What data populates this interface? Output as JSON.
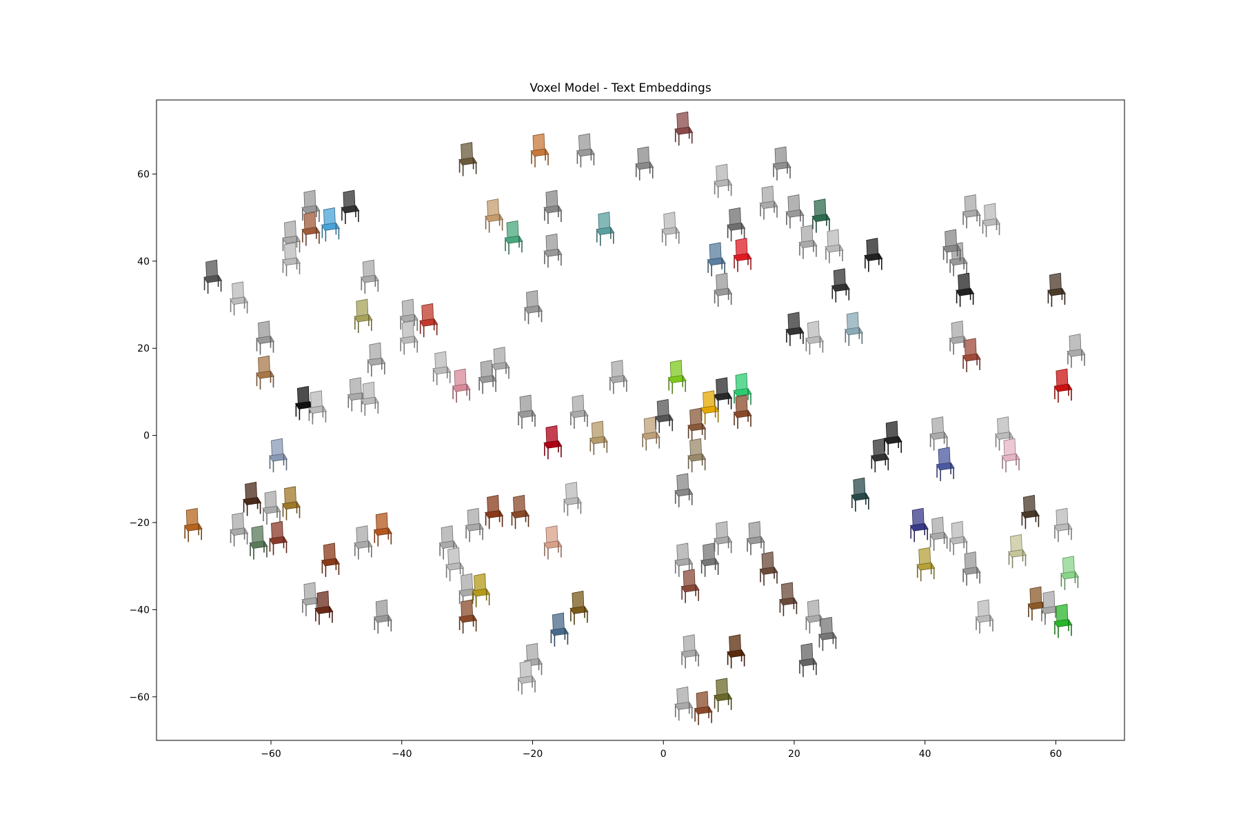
{
  "chart_data": {
    "type": "scatter",
    "title": "Voxel Model - Text Embeddings",
    "xlabel": "",
    "ylabel": "",
    "xlim": [
      -77.5,
      70.5
    ],
    "ylim": [
      -70,
      77
    ],
    "xticks": [
      -60,
      -40,
      -20,
      0,
      20,
      40,
      60
    ],
    "yticks": [
      -60,
      -40,
      -20,
      0,
      20,
      40,
      60
    ],
    "xtick_labels": [
      "−60",
      "−40",
      "−20",
      "0",
      "20",
      "40",
      "60"
    ],
    "ytick_labels": [
      "−60",
      "−40",
      "−20",
      "0",
      "20",
      "40",
      "60"
    ],
    "grid": false,
    "legend": "none",
    "marker": "chair-thumbnail",
    "points": [
      {
        "x": -30,
        "y": 63,
        "color": "#6b5a3a"
      },
      {
        "x": -19,
        "y": 65,
        "color": "#c8783a"
      },
      {
        "x": -12,
        "y": 65,
        "color": "#9a9a9a"
      },
      {
        "x": -3,
        "y": 62,
        "color": "#8a8a8a"
      },
      {
        "x": 3,
        "y": 70,
        "color": "#8a4a4a"
      },
      {
        "x": 9,
        "y": 58,
        "color": "#b5b5b5"
      },
      {
        "x": 18,
        "y": 62,
        "color": "#909090"
      },
      {
        "x": -54,
        "y": 52,
        "color": "#9a9a9a"
      },
      {
        "x": -48,
        "y": 52,
        "color": "#333333"
      },
      {
        "x": -51,
        "y": 48,
        "color": "#4aa3d8"
      },
      {
        "x": -54,
        "y": 47,
        "color": "#a05a3a"
      },
      {
        "x": -57,
        "y": 45,
        "color": "#aaaaaa"
      },
      {
        "x": -57,
        "y": 40,
        "color": "#bbbbbb"
      },
      {
        "x": -26,
        "y": 50,
        "color": "#c69c6d"
      },
      {
        "x": -23,
        "y": 45,
        "color": "#4aa87f"
      },
      {
        "x": -17,
        "y": 52,
        "color": "#888888"
      },
      {
        "x": -17,
        "y": 42,
        "color": "#999999"
      },
      {
        "x": -9,
        "y": 47,
        "color": "#5aa0a0"
      },
      {
        "x": 1,
        "y": 47,
        "color": "#bbbbbb"
      },
      {
        "x": 11,
        "y": 48,
        "color": "#707070"
      },
      {
        "x": 16,
        "y": 53,
        "color": "#aaaaaa"
      },
      {
        "x": 20,
        "y": 51,
        "color": "#999999"
      },
      {
        "x": 24,
        "y": 50,
        "color": "#2e6b4f"
      },
      {
        "x": 8,
        "y": 40,
        "color": "#5a7fa0"
      },
      {
        "x": 12,
        "y": 41,
        "color": "#e01b24"
      },
      {
        "x": 22,
        "y": 44,
        "color": "#aaaaaa"
      },
      {
        "x": 26,
        "y": 43,
        "color": "#bbbbbb"
      },
      {
        "x": 32,
        "y": 41,
        "color": "#222222"
      },
      {
        "x": 47,
        "y": 51,
        "color": "#aaaaaa"
      },
      {
        "x": 50,
        "y": 49,
        "color": "#bbbbbb"
      },
      {
        "x": -69,
        "y": 36,
        "color": "#555555"
      },
      {
        "x": -65,
        "y": 31,
        "color": "#bbbbbb"
      },
      {
        "x": -45,
        "y": 36,
        "color": "#aaaaaa"
      },
      {
        "x": -46,
        "y": 27,
        "color": "#a6a35a"
      },
      {
        "x": -39,
        "y": 27,
        "color": "#aaaaaa"
      },
      {
        "x": -36,
        "y": 26,
        "color": "#c0392b"
      },
      {
        "x": -39,
        "y": 22,
        "color": "#bbbbbb"
      },
      {
        "x": -20,
        "y": 29,
        "color": "#999999"
      },
      {
        "x": 9,
        "y": 33,
        "color": "#999999"
      },
      {
        "x": 27,
        "y": 34,
        "color": "#333333"
      },
      {
        "x": 20,
        "y": 24,
        "color": "#333333"
      },
      {
        "x": 23,
        "y": 22,
        "color": "#bbbbbb"
      },
      {
        "x": 29,
        "y": 24,
        "color": "#8aaab5"
      },
      {
        "x": 45,
        "y": 40,
        "color": "#999999"
      },
      {
        "x": 46,
        "y": 33,
        "color": "#222222"
      },
      {
        "x": 44,
        "y": 43,
        "color": "#888888"
      },
      {
        "x": 60,
        "y": 33,
        "color": "#4a3a2a"
      },
      {
        "x": -61,
        "y": 22,
        "color": "#999999"
      },
      {
        "x": -61,
        "y": 14,
        "color": "#a8784a"
      },
      {
        "x": -44,
        "y": 17,
        "color": "#aaaaaa"
      },
      {
        "x": -34,
        "y": 15,
        "color": "#bbbbbb"
      },
      {
        "x": -31,
        "y": 11,
        "color": "#d98a9a"
      },
      {
        "x": -27,
        "y": 13,
        "color": "#999999"
      },
      {
        "x": -25,
        "y": 16,
        "color": "#aaaaaa"
      },
      {
        "x": -55,
        "y": 7,
        "color": "#111111"
      },
      {
        "x": -53,
        "y": 6,
        "color": "#bbbbbb"
      },
      {
        "x": -47,
        "y": 9,
        "color": "#aaaaaa"
      },
      {
        "x": -45,
        "y": 8,
        "color": "#bbbbbb"
      },
      {
        "x": -7,
        "y": 13,
        "color": "#aaaaaa"
      },
      {
        "x": 2,
        "y": 13,
        "color": "#7ec81e"
      },
      {
        "x": 9,
        "y": 9,
        "color": "#2a2a2a"
      },
      {
        "x": 12,
        "y": 10,
        "color": "#2ecc71"
      },
      {
        "x": 7,
        "y": 6,
        "color": "#e5a800"
      },
      {
        "x": 12,
        "y": 5,
        "color": "#8a4a2a"
      },
      {
        "x": 45,
        "y": 22,
        "color": "#aaaaaa"
      },
      {
        "x": 47,
        "y": 18,
        "color": "#a04a3a"
      },
      {
        "x": 63,
        "y": 19,
        "color": "#aaaaaa"
      },
      {
        "x": 61,
        "y": 11,
        "color": "#cc1111"
      },
      {
        "x": -21,
        "y": 5,
        "color": "#999999"
      },
      {
        "x": -13,
        "y": 5,
        "color": "#aaaaaa"
      },
      {
        "x": -17,
        "y": -2,
        "color": "#b00015"
      },
      {
        "x": -10,
        "y": -1,
        "color": "#b59a6a"
      },
      {
        "x": 0,
        "y": 4,
        "color": "#555555"
      },
      {
        "x": -2,
        "y": 0,
        "color": "#c0a07a"
      },
      {
        "x": 5,
        "y": 2,
        "color": "#8a5a3a"
      },
      {
        "x": 5,
        "y": -5,
        "color": "#9a8a6a"
      },
      {
        "x": 3,
        "y": -13,
        "color": "#888888"
      },
      {
        "x": -59,
        "y": -5,
        "color": "#8a9ab5"
      },
      {
        "x": 33,
        "y": -5,
        "color": "#333333"
      },
      {
        "x": 35,
        "y": -1,
        "color": "#222222"
      },
      {
        "x": 30,
        "y": -14,
        "color": "#2a4a4a"
      },
      {
        "x": 42,
        "y": 0,
        "color": "#aaaaaa"
      },
      {
        "x": 43,
        "y": -7,
        "color": "#4a5aa0"
      },
      {
        "x": 52,
        "y": 0,
        "color": "#bbbbbb"
      },
      {
        "x": 53,
        "y": -5,
        "color": "#e5b5c5"
      },
      {
        "x": -72,
        "y": -21,
        "color": "#b5651d"
      },
      {
        "x": -65,
        "y": -22,
        "color": "#aaaaaa"
      },
      {
        "x": -63,
        "y": -15,
        "color": "#4a2a1a"
      },
      {
        "x": -62,
        "y": -25,
        "color": "#5a7a5a"
      },
      {
        "x": -60,
        "y": -17,
        "color": "#aaaaaa"
      },
      {
        "x": -57,
        "y": -16,
        "color": "#a0782a"
      },
      {
        "x": -59,
        "y": -24,
        "color": "#8a3a2a"
      },
      {
        "x": -51,
        "y": -29,
        "color": "#8a3a1a"
      },
      {
        "x": -46,
        "y": -25,
        "color": "#aaaaaa"
      },
      {
        "x": -43,
        "y": -22,
        "color": "#b5551d"
      },
      {
        "x": -33,
        "y": -25,
        "color": "#aaaaaa"
      },
      {
        "x": -32,
        "y": -30,
        "color": "#bbbbbb"
      },
      {
        "x": -29,
        "y": -21,
        "color": "#aaaaaa"
      },
      {
        "x": -26,
        "y": -18,
        "color": "#8a3a1a"
      },
      {
        "x": -22,
        "y": -18,
        "color": "#8a4a2a"
      },
      {
        "x": -14,
        "y": -15,
        "color": "#bbbbbb"
      },
      {
        "x": -17,
        "y": -25,
        "color": "#d9a08a"
      },
      {
        "x": 3,
        "y": -29,
        "color": "#aaaaaa"
      },
      {
        "x": 7,
        "y": -29,
        "color": "#777777"
      },
      {
        "x": 9,
        "y": -24,
        "color": "#aaaaaa"
      },
      {
        "x": 14,
        "y": -24,
        "color": "#999999"
      },
      {
        "x": 4,
        "y": -35,
        "color": "#8a4a3a"
      },
      {
        "x": 16,
        "y": -31,
        "color": "#6a4a3a"
      },
      {
        "x": 19,
        "y": -38,
        "color": "#6a4a3a"
      },
      {
        "x": 23,
        "y": -42,
        "color": "#aaaaaa"
      },
      {
        "x": 25,
        "y": -46,
        "color": "#777777"
      },
      {
        "x": 22,
        "y": -52,
        "color": "#666666"
      },
      {
        "x": 39,
        "y": -21,
        "color": "#3a3a8a"
      },
      {
        "x": 42,
        "y": -23,
        "color": "#aaaaaa"
      },
      {
        "x": 45,
        "y": -24,
        "color": "#bbbbbb"
      },
      {
        "x": 40,
        "y": -30,
        "color": "#b5a03a"
      },
      {
        "x": 47,
        "y": -31,
        "color": "#999999"
      },
      {
        "x": 54,
        "y": -27,
        "color": "#c5c59a"
      },
      {
        "x": 56,
        "y": -18,
        "color": "#4a3a2a"
      },
      {
        "x": 61,
        "y": -21,
        "color": "#bbbbbb"
      },
      {
        "x": 62,
        "y": -32,
        "color": "#8ad58a"
      },
      {
        "x": 57,
        "y": -39,
        "color": "#8a5a2a"
      },
      {
        "x": 59,
        "y": -40,
        "color": "#aaaaaa"
      },
      {
        "x": 49,
        "y": -42,
        "color": "#bbbbbb"
      },
      {
        "x": 61,
        "y": -43,
        "color": "#2ab52a"
      },
      {
        "x": -54,
        "y": -38,
        "color": "#aaaaaa"
      },
      {
        "x": -52,
        "y": -40,
        "color": "#6a2a1a"
      },
      {
        "x": -43,
        "y": -42,
        "color": "#999999"
      },
      {
        "x": -30,
        "y": -36,
        "color": "#aaaaaa"
      },
      {
        "x": -28,
        "y": -36,
        "color": "#b59a1a"
      },
      {
        "x": -30,
        "y": -42,
        "color": "#8a4a2a"
      },
      {
        "x": -13,
        "y": -40,
        "color": "#7a5a1a"
      },
      {
        "x": -16,
        "y": -45,
        "color": "#4a6a8a"
      },
      {
        "x": -20,
        "y": -52,
        "color": "#aaaaaa"
      },
      {
        "x": -21,
        "y": -56,
        "color": "#bbbbbb"
      },
      {
        "x": 4,
        "y": -50,
        "color": "#aaaaaa"
      },
      {
        "x": 11,
        "y": -50,
        "color": "#5a2a0a"
      },
      {
        "x": 3,
        "y": -62,
        "color": "#aaaaaa"
      },
      {
        "x": 6,
        "y": -63,
        "color": "#8a4a2a"
      },
      {
        "x": 9,
        "y": -60,
        "color": "#6a6a2a"
      }
    ]
  }
}
